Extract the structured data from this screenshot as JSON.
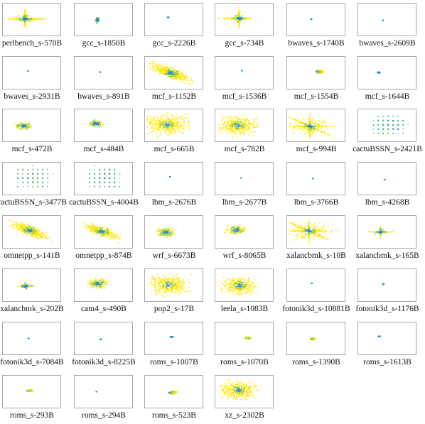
{
  "figure": {
    "colors": {
      "primary": "#ffe600",
      "secondary": "#7cc04a",
      "core": "#1f8fd0",
      "frame": "#a8a8a8"
    }
  },
  "chart_data": {
    "type": "scatter",
    "description_of_encoding": "",
    "panels": [
      {
        "name": "perlbench_s-570B",
        "pattern": "cross",
        "spread": 0.9
      },
      {
        "name": "gcc_s-1850B",
        "pattern": "column",
        "spread": 0.35
      },
      {
        "name": "gcc_s-2226B",
        "pattern": "dot",
        "spread": 0.12
      },
      {
        "name": "gcc_s-734B",
        "pattern": "cross",
        "spread": 0.8
      },
      {
        "name": "bwaves_s-1740B",
        "pattern": "dot",
        "spread": 0.1
      },
      {
        "name": "bwaves_s-2609B",
        "pattern": "dot",
        "spread": 0.08
      },
      {
        "name": "bwaves_s-2931B",
        "pattern": "dot",
        "spread": 0.06
      },
      {
        "name": "bwaves_s-891B",
        "pattern": "dot",
        "spread": 0.1
      },
      {
        "name": "mcf_s-1152B",
        "pattern": "diagonal",
        "spread": 1.0
      },
      {
        "name": "mcf_s-1536B",
        "pattern": "dot",
        "spread": 0.06
      },
      {
        "name": "mcf_s-1554B",
        "pattern": "ellipse",
        "spread": 0.45
      },
      {
        "name": "mcf_s-1644B",
        "pattern": "dot",
        "spread": 0.2
      },
      {
        "name": "mcf_s-472B",
        "pattern": "cloud",
        "spread": 0.5
      },
      {
        "name": "mcf_s-484B",
        "pattern": "cloud",
        "spread": 0.45
      },
      {
        "name": "mcf_s-665B",
        "pattern": "blob",
        "spread": 1.0
      },
      {
        "name": "mcf_s-782B",
        "pattern": "blob",
        "spread": 0.95
      },
      {
        "name": "mcf_s-994B",
        "pattern": "bigcross",
        "spread": 1.0
      },
      {
        "name": "cactuBSSN_s-2421B",
        "pattern": "lattice",
        "spread": 0.7
      },
      {
        "name": "cactuBSSN_s-3477B",
        "pattern": "lattice",
        "spread": 0.8
      },
      {
        "name": "cactuBSSN_s-4004B",
        "pattern": "lattice",
        "spread": 0.8
      },
      {
        "name": "lbm_s-2676B",
        "pattern": "dot",
        "spread": 0.06
      },
      {
        "name": "lbm_s-2677B",
        "pattern": "dot",
        "spread": 0.06
      },
      {
        "name": "lbm_s-3766B",
        "pattern": "dot",
        "spread": 0.06
      },
      {
        "name": "lbm_s-4268B",
        "pattern": "dot",
        "spread": 0.06
      },
      {
        "name": "omnetpp_s-141B",
        "pattern": "diagonal",
        "spread": 0.9
      },
      {
        "name": "omnetpp_s-874B",
        "pattern": "diagonal",
        "spread": 0.85
      },
      {
        "name": "wrf_s-6673B",
        "pattern": "cloud",
        "spread": 0.6
      },
      {
        "name": "wrf_s-8065B",
        "pattern": "cloud",
        "spread": 0.6
      },
      {
        "name": "xalancbmk_s-10B",
        "pattern": "bigcross",
        "spread": 1.0
      },
      {
        "name": "xalancbmk_s-165B",
        "pattern": "cross",
        "spread": 0.55
      },
      {
        "name": "xalancbmk_s-202B",
        "pattern": "cross",
        "spread": 0.45
      },
      {
        "name": "cam4_s-490B",
        "pattern": "cloud",
        "spread": 0.6
      },
      {
        "name": "pop2_s-17B",
        "pattern": "blob",
        "spread": 0.95
      },
      {
        "name": "leela_s-1083B",
        "pattern": "blob",
        "spread": 0.85
      },
      {
        "name": "fotonik3d_s-10881B",
        "pattern": "dot",
        "spread": 0.08
      },
      {
        "name": "fotonik3d_s-1176B",
        "pattern": "dot",
        "spread": 0.15
      },
      {
        "name": "fotonik3d_s-7084B",
        "pattern": "dot",
        "spread": 0.08
      },
      {
        "name": "fotonik3d_s-8225B",
        "pattern": "dot",
        "spread": 0.1
      },
      {
        "name": "roms_s-1007B",
        "pattern": "dot",
        "spread": 0.2
      },
      {
        "name": "roms_s-1070B",
        "pattern": "ellipse",
        "spread": 0.3
      },
      {
        "name": "roms_s-1390B",
        "pattern": "ellipse",
        "spread": 0.3
      },
      {
        "name": "roms_s-1613B",
        "pattern": "dot",
        "spread": 0.15
      },
      {
        "name": "roms_s-293B",
        "pattern": "ellipse",
        "spread": 0.35
      },
      {
        "name": "roms_s-294B",
        "pattern": "dot",
        "spread": 0.06
      },
      {
        "name": "roms_s-523B",
        "pattern": "ellipse",
        "spread": 0.4
      },
      {
        "name": "xz_s-2302B",
        "pattern": "blob",
        "spread": 0.9
      }
    ]
  }
}
